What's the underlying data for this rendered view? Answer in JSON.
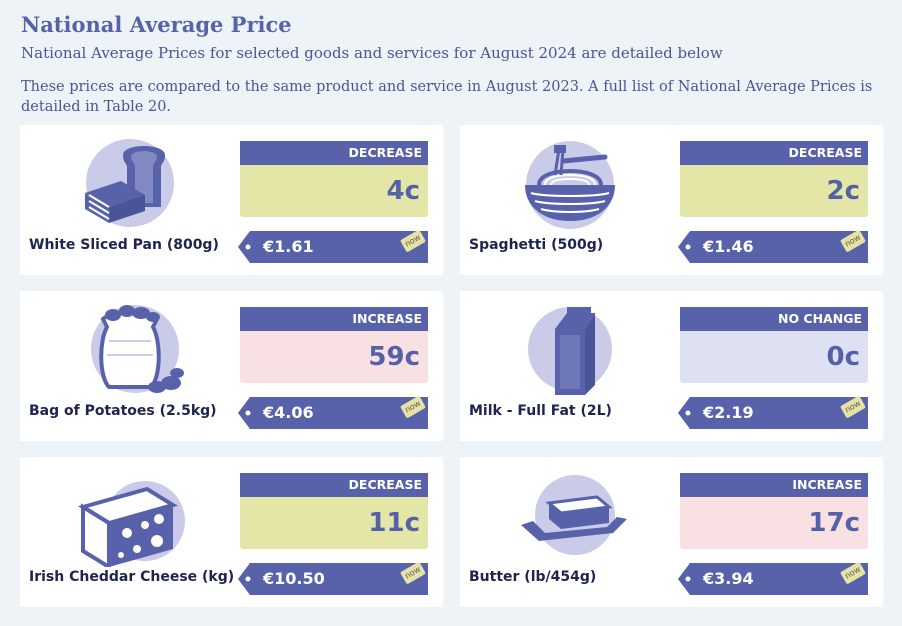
{
  "header": {
    "title": "National Average Price",
    "subtitle": "National Average Prices for selected goods and services for August 2024 are detailed below",
    "intro": "These prices are compared to the same product and service in August 2023. A full list of National Average Prices is detailed in Table 20."
  },
  "colors": {
    "accent": "#5762ab",
    "decrease_bg": "#e3e6a6",
    "increase_bg": "#f9e0e2",
    "nochange_bg": "#dde1f2",
    "icon_circle": "#c9cbe9",
    "now_tag": "#e6e2a4"
  },
  "products": [
    {
      "name": "White Sliced Pan (800g)",
      "change_label": "DECREASE",
      "change_value": "4c",
      "price": "€1.61",
      "now_label": "now",
      "icon": "bread-icon"
    },
    {
      "name": "Spaghetti (500g)",
      "change_label": "DECREASE",
      "change_value": "2c",
      "price": "€1.46",
      "now_label": "now",
      "icon": "spaghetti-icon"
    },
    {
      "name": "Bag of Potatoes (2.5kg)",
      "change_label": "INCREASE",
      "change_value": "59c",
      "price": "€4.06",
      "now_label": "now",
      "icon": "potato-bag-icon"
    },
    {
      "name": "Milk - Full Fat (2L)",
      "change_label": "NO CHANGE",
      "change_value": "0c",
      "price": "€2.19",
      "now_label": "now",
      "icon": "milk-carton-icon"
    },
    {
      "name": "Irish Cheddar Cheese (kg)",
      "change_label": "DECREASE",
      "change_value": "11c",
      "price": "€10.50",
      "now_label": "now",
      "icon": "cheese-icon"
    },
    {
      "name": "Butter (lb/454g)",
      "change_label": "INCREASE",
      "change_value": "17c",
      "price": "€3.94",
      "now_label": "now",
      "icon": "butter-icon"
    }
  ]
}
